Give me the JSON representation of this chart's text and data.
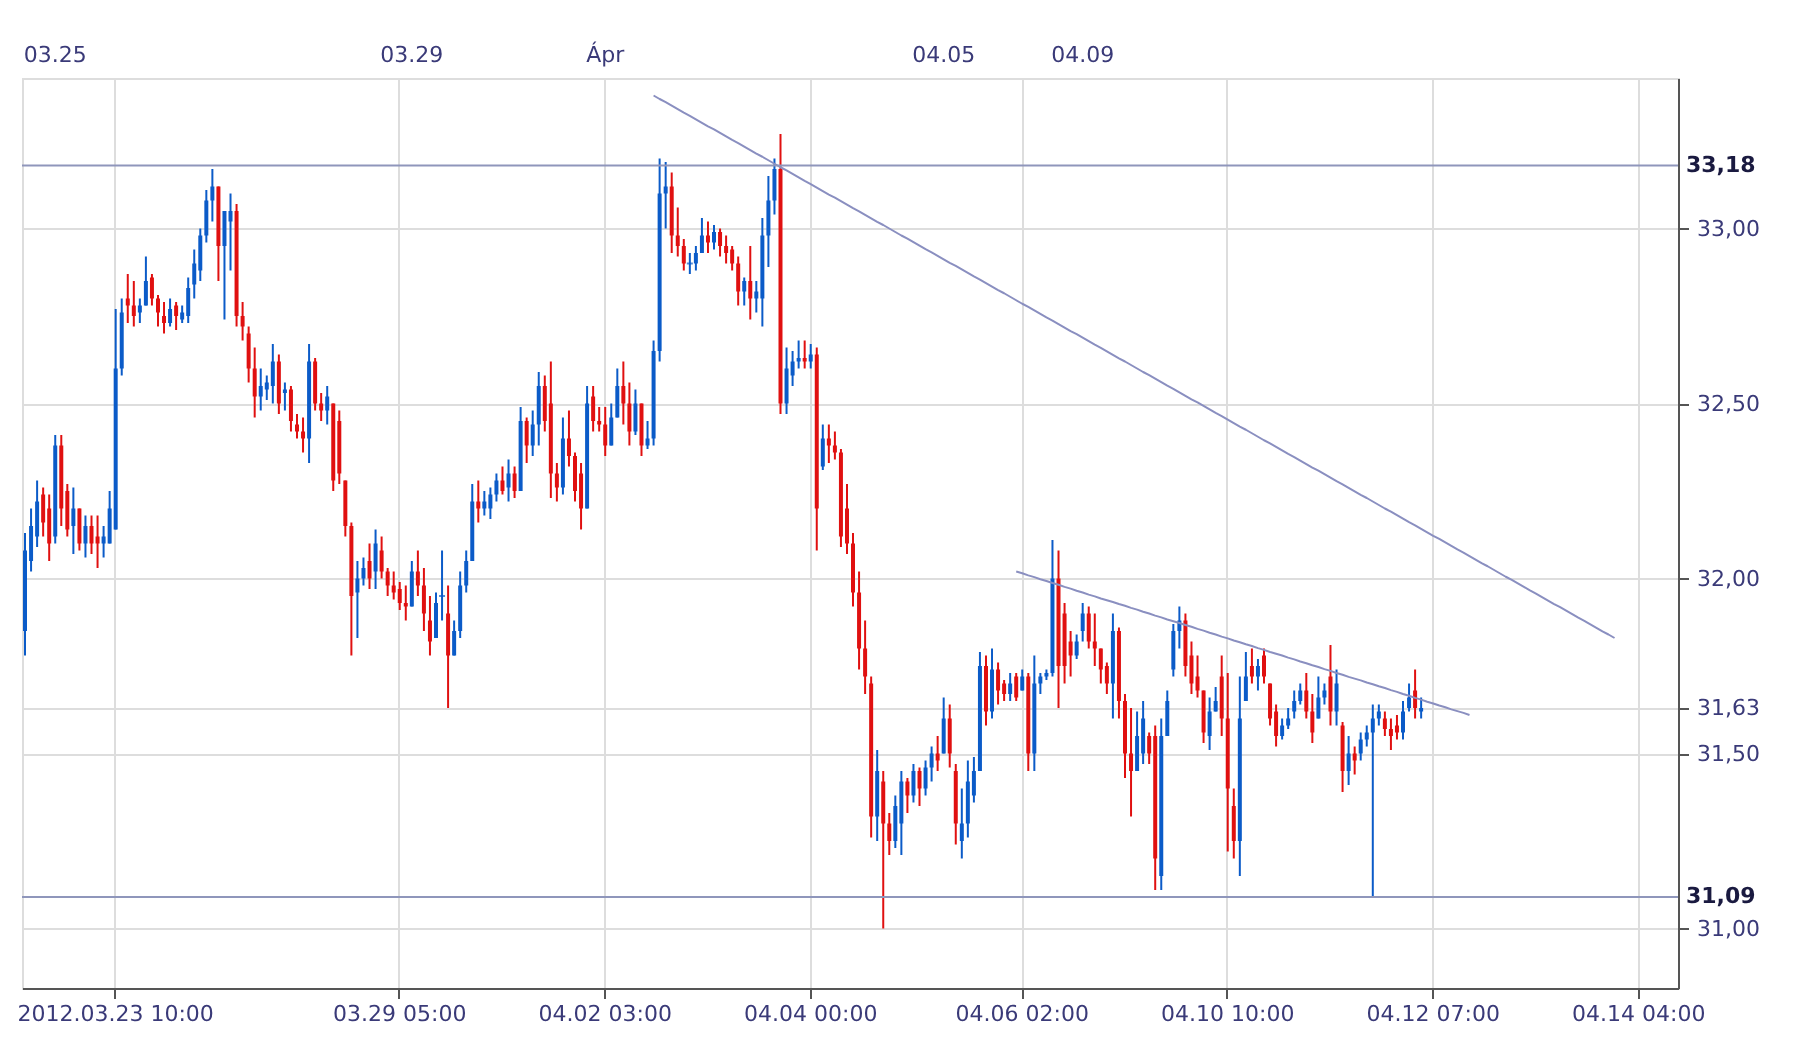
{
  "chart_data": {
    "type": "candlestick",
    "categories": [
      null,
      null,
      null,
      null,
      null,
      null,
      null,
      null,
      null,
      null,
      null,
      null,
      null,
      null,
      null,
      "2012.03.23 10:00",
      null,
      null,
      null,
      null,
      null,
      null,
      null,
      null,
      null,
      null,
      null,
      null,
      null,
      null,
      null,
      null,
      null,
      null,
      null,
      null,
      null,
      null,
      null,
      null,
      null,
      null,
      null,
      null,
      null,
      null,
      null,
      null,
      null,
      null,
      null,
      null,
      null,
      null,
      null,
      null,
      null,
      null,
      null,
      null,
      null,
      null,
      "03.29 05:00",
      null,
      null,
      null,
      null,
      null,
      null,
      null,
      null,
      null,
      null,
      null,
      null,
      null,
      null,
      null,
      null,
      null,
      null,
      null,
      null,
      null,
      null,
      null,
      null,
      null,
      null,
      null,
      null,
      null,
      null,
      null,
      null,
      null,
      "04.02 03:00",
      null,
      null,
      null,
      null,
      null,
      null,
      null,
      null,
      null,
      null,
      null,
      null,
      null,
      null,
      null,
      null,
      null,
      null,
      null,
      null,
      null,
      null,
      null,
      null,
      null,
      null,
      null,
      null,
      null,
      null,
      null,
      null,
      null,
      "04.04 00:00",
      null,
      null,
      null,
      null,
      null,
      null,
      null,
      null,
      null,
      null,
      null,
      null,
      null,
      null,
      null,
      null,
      null,
      null,
      null,
      null,
      null,
      null,
      null,
      null,
      null,
      null,
      null,
      null,
      null,
      null,
      null,
      null,
      null,
      null,
      "04.06 02:00",
      null,
      null,
      null,
      null,
      null,
      null,
      null,
      null,
      null,
      null,
      null,
      null,
      null,
      null,
      null,
      null,
      null,
      null,
      null,
      null,
      null,
      null,
      null,
      null,
      null,
      null,
      null,
      null,
      null,
      null,
      null,
      null,
      null,
      "04.10 10:00",
      null,
      null,
      null,
      null,
      null,
      null,
      null,
      null,
      null,
      null,
      null,
      null,
      null,
      null,
      null,
      null,
      null,
      null,
      null,
      null,
      null,
      null,
      null,
      null,
      null,
      null,
      null,
      null,
      null,
      null,
      null,
      null,
      null,
      "04.12 07:00",
      null,
      null,
      null,
      null,
      null,
      null,
      null,
      null,
      null,
      null,
      null,
      null,
      null,
      null,
      null,
      null,
      null,
      null,
      null,
      null,
      null,
      null,
      null,
      null,
      null,
      null,
      null,
      null,
      null,
      null,
      null,
      null,
      null,
      "04.14 04:00",
      null,
      null,
      null,
      null,
      null,
      null
    ],
    "ohlc": [
      [
        31.85,
        32.13,
        31.78,
        32.08
      ],
      [
        32.05,
        32.2,
        32.02,
        32.15
      ],
      [
        32.12,
        32.28,
        32.09,
        32.22
      ],
      [
        32.24,
        32.26,
        32.12,
        32.16
      ],
      [
        32.2,
        32.24,
        32.05,
        32.1
      ],
      [
        32.12,
        32.41,
        32.1,
        32.38
      ],
      [
        32.38,
        32.41,
        32.15,
        32.2
      ],
      [
        32.25,
        32.27,
        32.12,
        32.14
      ],
      [
        32.15,
        32.26,
        32.07,
        32.2
      ],
      [
        32.2,
        32.2,
        32.08,
        32.1
      ],
      [
        32.1,
        32.18,
        32.06,
        32.15
      ],
      [
        32.15,
        32.18,
        32.07,
        32.1
      ],
      [
        32.12,
        32.18,
        32.03,
        32.1
      ],
      [
        32.1,
        32.15,
        32.06,
        32.12
      ],
      [
        32.1,
        32.25,
        32.1,
        32.2
      ],
      [
        32.14,
        32.77,
        32.14,
        32.6
      ],
      [
        32.6,
        32.8,
        32.58,
        32.76
      ],
      [
        32.8,
        32.87,
        32.73,
        32.78
      ],
      [
        32.78,
        32.85,
        32.72,
        32.75
      ],
      [
        32.76,
        32.8,
        32.73,
        32.78
      ],
      [
        32.78,
        32.92,
        32.78,
        32.85
      ],
      [
        32.86,
        32.87,
        32.78,
        32.8
      ],
      [
        32.8,
        32.81,
        32.72,
        32.76
      ],
      [
        32.75,
        32.79,
        32.7,
        32.73
      ],
      [
        32.73,
        32.8,
        32.72,
        32.77
      ],
      [
        32.78,
        32.79,
        32.71,
        32.75
      ],
      [
        32.74,
        32.78,
        32.73,
        32.76
      ],
      [
        32.75,
        32.86,
        32.73,
        32.83
      ],
      [
        32.84,
        32.94,
        32.8,
        32.9
      ],
      [
        32.88,
        33.0,
        32.85,
        32.98
      ],
      [
        32.98,
        33.11,
        32.96,
        33.08
      ],
      [
        33.08,
        33.17,
        33.02,
        33.12
      ],
      [
        33.12,
        33.12,
        32.85,
        32.95
      ],
      [
        32.95,
        33.05,
        32.74,
        33.05
      ],
      [
        33.02,
        33.1,
        32.88,
        33.05
      ],
      [
        33.05,
        33.07,
        32.72,
        32.75
      ],
      [
        32.75,
        32.79,
        32.68,
        32.72
      ],
      [
        32.7,
        32.72,
        32.56,
        32.6
      ],
      [
        32.6,
        32.66,
        32.46,
        32.52
      ],
      [
        32.52,
        32.6,
        32.48,
        32.55
      ],
      [
        32.54,
        32.58,
        32.51,
        32.56
      ],
      [
        32.55,
        32.67,
        32.5,
        32.62
      ],
      [
        32.62,
        32.64,
        32.47,
        32.5
      ],
      [
        32.53,
        32.56,
        32.48,
        32.54
      ],
      [
        32.54,
        32.55,
        32.42,
        32.45
      ],
      [
        32.44,
        32.47,
        32.4,
        32.42
      ],
      [
        32.42,
        32.46,
        32.36,
        32.4
      ],
      [
        32.4,
        32.67,
        32.33,
        32.62
      ],
      [
        32.62,
        32.63,
        32.48,
        32.5
      ],
      [
        32.5,
        32.53,
        32.45,
        32.48
      ],
      [
        32.48,
        32.55,
        32.44,
        32.52
      ],
      [
        32.5,
        32.5,
        32.25,
        32.28
      ],
      [
        32.45,
        32.48,
        32.27,
        32.3
      ],
      [
        32.28,
        32.28,
        32.12,
        32.15
      ],
      [
        32.15,
        32.16,
        31.78,
        31.95
      ],
      [
        31.96,
        32.05,
        31.83,
        32.0
      ],
      [
        32.0,
        32.06,
        31.98,
        32.03
      ],
      [
        32.05,
        32.1,
        31.97,
        32.0
      ],
      [
        32.02,
        32.14,
        31.97,
        32.1
      ],
      [
        32.08,
        32.12,
        32.0,
        32.02
      ],
      [
        32.02,
        32.03,
        31.95,
        31.98
      ],
      [
        31.98,
        32.02,
        31.94,
        31.96
      ],
      [
        31.97,
        31.99,
        31.91,
        31.93
      ],
      [
        31.93,
        31.98,
        31.88,
        31.92
      ],
      [
        31.92,
        32.05,
        31.92,
        32.02
      ],
      [
        32.02,
        32.08,
        31.95,
        31.98
      ],
      [
        31.98,
        32.03,
        31.85,
        31.9
      ],
      [
        31.88,
        31.95,
        31.78,
        31.82
      ],
      [
        31.83,
        31.96,
        31.83,
        31.93
      ],
      [
        31.95,
        32.08,
        31.88,
        31.95
      ],
      [
        31.9,
        31.98,
        31.63,
        31.78
      ],
      [
        31.78,
        31.88,
        31.78,
        31.85
      ],
      [
        31.85,
        32.02,
        31.83,
        31.98
      ],
      [
        31.98,
        32.08,
        31.96,
        32.05
      ],
      [
        32.05,
        32.27,
        32.05,
        32.22
      ],
      [
        32.22,
        32.28,
        32.16,
        32.2
      ],
      [
        32.2,
        32.25,
        32.18,
        32.22
      ],
      [
        32.2,
        32.26,
        32.17,
        32.24
      ],
      [
        32.24,
        32.3,
        32.22,
        32.28
      ],
      [
        32.28,
        32.32,
        32.24,
        32.25
      ],
      [
        32.26,
        32.34,
        32.22,
        32.3
      ],
      [
        32.3,
        32.32,
        32.23,
        32.25
      ],
      [
        32.25,
        32.49,
        32.25,
        32.45
      ],
      [
        32.45,
        32.46,
        32.33,
        32.38
      ],
      [
        32.38,
        32.48,
        32.35,
        32.44
      ],
      [
        32.44,
        32.59,
        32.38,
        32.55
      ],
      [
        32.55,
        32.58,
        32.42,
        32.45
      ],
      [
        32.5,
        32.62,
        32.23,
        32.3
      ],
      [
        32.3,
        32.33,
        32.22,
        32.26
      ],
      [
        32.26,
        32.46,
        32.24,
        32.4
      ],
      [
        32.4,
        32.48,
        32.32,
        32.35
      ],
      [
        32.35,
        32.36,
        32.22,
        32.25
      ],
      [
        32.3,
        32.33,
        32.14,
        32.2
      ],
      [
        32.2,
        32.55,
        32.2,
        32.5
      ],
      [
        32.52,
        32.55,
        32.42,
        32.45
      ],
      [
        32.45,
        32.49,
        32.42,
        32.44
      ],
      [
        32.44,
        32.49,
        32.35,
        32.38
      ],
      [
        32.38,
        32.5,
        32.38,
        32.46
      ],
      [
        32.46,
        32.6,
        32.46,
        32.55
      ],
      [
        32.55,
        32.62,
        32.44,
        32.5
      ],
      [
        32.5,
        32.56,
        32.38,
        32.42
      ],
      [
        32.42,
        32.54,
        32.41,
        32.5
      ],
      [
        32.5,
        32.5,
        32.35,
        32.38
      ],
      [
        32.38,
        32.45,
        32.37,
        32.4
      ],
      [
        32.4,
        32.68,
        32.38,
        32.65
      ],
      [
        32.65,
        33.2,
        32.62,
        33.1
      ],
      [
        33.1,
        33.19,
        33.0,
        33.12
      ],
      [
        33.12,
        33.16,
        32.93,
        32.98
      ],
      [
        32.98,
        33.06,
        32.92,
        32.95
      ],
      [
        32.95,
        32.97,
        32.88,
        32.9
      ],
      [
        32.9,
        32.93,
        32.87,
        32.9
      ],
      [
        32.9,
        32.95,
        32.88,
        32.93
      ],
      [
        32.93,
        33.03,
        32.93,
        32.98
      ],
      [
        32.98,
        33.02,
        32.93,
        32.96
      ],
      [
        32.96,
        33.01,
        32.94,
        32.99
      ],
      [
        32.99,
        33.0,
        32.92,
        32.95
      ],
      [
        32.95,
        32.98,
        32.9,
        32.93
      ],
      [
        32.94,
        32.95,
        32.88,
        32.9
      ],
      [
        32.9,
        32.92,
        32.78,
        32.82
      ],
      [
        32.82,
        32.86,
        32.78,
        32.85
      ],
      [
        32.85,
        32.95,
        32.74,
        32.8
      ],
      [
        32.8,
        32.85,
        32.76,
        32.82
      ],
      [
        32.8,
        33.03,
        32.72,
        32.98
      ],
      [
        32.98,
        33.15,
        32.89,
        33.08
      ],
      [
        33.08,
        33.2,
        33.04,
        33.17
      ],
      [
        33.17,
        33.27,
        32.47,
        32.5
      ],
      [
        32.5,
        32.66,
        32.47,
        32.6
      ],
      [
        32.58,
        32.65,
        32.55,
        32.62
      ],
      [
        32.62,
        32.68,
        32.6,
        32.63
      ],
      [
        32.63,
        32.68,
        32.6,
        32.62
      ],
      [
        32.62,
        32.67,
        32.6,
        32.64
      ],
      [
        32.64,
        32.66,
        32.08,
        32.2
      ],
      [
        32.32,
        32.44,
        32.31,
        32.4
      ],
      [
        32.4,
        32.44,
        32.33,
        32.38
      ],
      [
        32.38,
        32.42,
        32.34,
        32.36
      ],
      [
        32.36,
        32.37,
        32.09,
        32.12
      ],
      [
        32.2,
        32.27,
        32.07,
        32.1
      ],
      [
        32.1,
        32.13,
        31.92,
        31.96
      ],
      [
        31.96,
        32.02,
        31.74,
        31.8
      ],
      [
        31.8,
        31.88,
        31.67,
        31.72
      ],
      [
        31.7,
        31.72,
        31.26,
        31.32
      ],
      [
        31.32,
        31.51,
        31.25,
        31.45
      ],
      [
        31.42,
        31.45,
        31.0,
        31.3
      ],
      [
        31.3,
        31.33,
        31.21,
        31.25
      ],
      [
        31.25,
        31.38,
        31.23,
        31.35
      ],
      [
        31.3,
        31.45,
        31.21,
        31.42
      ],
      [
        31.42,
        31.43,
        31.33,
        31.38
      ],
      [
        31.38,
        31.47,
        31.36,
        31.45
      ],
      [
        31.45,
        31.46,
        31.35,
        31.4
      ],
      [
        31.4,
        31.48,
        31.38,
        31.46
      ],
      [
        31.46,
        31.52,
        31.42,
        31.5
      ],
      [
        31.5,
        31.55,
        31.45,
        31.48
      ],
      [
        31.5,
        31.66,
        31.5,
        31.6
      ],
      [
        31.6,
        31.64,
        31.46,
        31.5
      ],
      [
        31.45,
        31.47,
        31.24,
        31.3
      ],
      [
        31.25,
        31.4,
        31.2,
        31.3
      ],
      [
        31.3,
        31.48,
        31.26,
        31.42
      ],
      [
        31.38,
        31.49,
        31.36,
        31.45
      ],
      [
        31.45,
        31.79,
        31.45,
        31.75
      ],
      [
        31.75,
        31.78,
        31.58,
        31.62
      ],
      [
        31.62,
        31.8,
        31.6,
        31.74
      ],
      [
        31.74,
        31.76,
        31.64,
        31.68
      ],
      [
        31.7,
        31.71,
        31.65,
        31.67
      ],
      [
        31.67,
        31.73,
        31.65,
        31.7
      ],
      [
        31.72,
        31.73,
        31.65,
        31.66
      ],
      [
        31.68,
        31.74,
        31.68,
        31.72
      ],
      [
        31.72,
        31.73,
        31.45,
        31.5
      ],
      [
        31.5,
        31.78,
        31.45,
        31.7
      ],
      [
        31.7,
        31.73,
        31.67,
        31.72
      ],
      [
        31.72,
        31.74,
        31.71,
        31.73
      ],
      [
        31.73,
        32.11,
        31.72,
        32.0
      ],
      [
        32.0,
        32.08,
        31.63,
        31.75
      ],
      [
        31.9,
        31.93,
        31.7,
        31.75
      ],
      [
        31.82,
        31.85,
        31.72,
        31.78
      ],
      [
        31.78,
        31.84,
        31.77,
        31.82
      ],
      [
        31.85,
        31.93,
        31.82,
        31.9
      ],
      [
        31.9,
        31.92,
        31.8,
        31.82
      ],
      [
        31.82,
        31.9,
        31.75,
        31.8
      ],
      [
        31.8,
        31.8,
        31.7,
        31.74
      ],
      [
        31.75,
        31.76,
        31.67,
        31.7
      ],
      [
        31.7,
        31.9,
        31.6,
        31.85
      ],
      [
        31.85,
        31.86,
        31.6,
        31.65
      ],
      [
        31.65,
        31.67,
        31.43,
        31.5
      ],
      [
        31.5,
        31.63,
        31.32,
        31.45
      ],
      [
        31.45,
        31.62,
        31.45,
        31.55
      ],
      [
        31.5,
        31.65,
        31.47,
        31.6
      ],
      [
        31.55,
        31.56,
        31.47,
        31.5
      ],
      [
        31.55,
        31.58,
        31.11,
        31.2
      ],
      [
        31.15,
        31.6,
        31.11,
        31.55
      ],
      [
        31.55,
        31.68,
        31.55,
        31.65
      ],
      [
        31.74,
        31.87,
        31.72,
        31.85
      ],
      [
        31.85,
        31.92,
        31.8,
        31.88
      ],
      [
        31.88,
        31.9,
        31.72,
        31.75
      ],
      [
        31.78,
        31.82,
        31.67,
        31.7
      ],
      [
        31.72,
        31.78,
        31.66,
        31.68
      ],
      [
        31.68,
        31.68,
        31.53,
        31.56
      ],
      [
        31.55,
        31.66,
        31.51,
        31.62
      ],
      [
        31.62,
        31.69,
        31.62,
        31.65
      ],
      [
        31.72,
        31.78,
        31.55,
        31.6
      ],
      [
        31.6,
        31.73,
        31.22,
        31.4
      ],
      [
        31.35,
        31.4,
        31.2,
        31.25
      ],
      [
        31.25,
        31.72,
        31.15,
        31.6
      ],
      [
        31.65,
        31.79,
        31.65,
        31.72
      ],
      [
        31.75,
        31.8,
        31.7,
        31.72
      ],
      [
        31.72,
        31.77,
        31.68,
        31.75
      ],
      [
        31.78,
        31.8,
        31.7,
        31.72
      ],
      [
        31.7,
        31.7,
        31.58,
        31.6
      ],
      [
        31.62,
        31.64,
        31.52,
        31.55
      ],
      [
        31.55,
        31.6,
        31.54,
        31.58
      ],
      [
        31.58,
        31.63,
        31.57,
        31.6
      ],
      [
        31.62,
        31.68,
        31.6,
        31.65
      ],
      [
        31.65,
        31.7,
        31.64,
        31.68
      ],
      [
        31.68,
        31.73,
        31.6,
        31.62
      ],
      [
        31.62,
        31.67,
        31.53,
        31.56
      ],
      [
        31.6,
        31.72,
        31.6,
        31.66
      ],
      [
        31.66,
        31.7,
        31.64,
        31.68
      ],
      [
        31.72,
        31.81,
        31.58,
        31.62
      ],
      [
        31.62,
        31.74,
        31.58,
        31.7
      ],
      [
        31.58,
        31.59,
        31.39,
        31.45
      ],
      [
        31.45,
        31.55,
        31.41,
        31.5
      ],
      [
        31.5,
        31.52,
        31.44,
        31.48
      ],
      [
        31.5,
        31.56,
        31.48,
        31.54
      ],
      [
        31.54,
        31.58,
        31.52,
        31.56
      ],
      [
        31.56,
        31.64,
        31.09,
        31.6
      ],
      [
        31.6,
        31.64,
        31.58,
        31.62
      ],
      [
        31.6,
        31.62,
        31.55,
        31.57
      ],
      [
        31.57,
        31.6,
        31.51,
        31.55
      ],
      [
        31.58,
        31.61,
        31.54,
        31.56
      ],
      [
        31.56,
        31.65,
        31.54,
        31.62
      ],
      [
        31.63,
        31.7,
        31.62,
        31.66
      ],
      [
        31.68,
        31.74,
        31.6,
        31.63
      ],
      [
        31.62,
        31.66,
        31.6,
        31.63
      ],
      null,
      null,
      null,
      null,
      null,
      null,
      null,
      null,
      null,
      null,
      null,
      null,
      null,
      null,
      null,
      null,
      null,
      null,
      null,
      null,
      null,
      null,
      null,
      null,
      null,
      null,
      null,
      null,
      null,
      null,
      null,
      null,
      null,
      null,
      null,
      null,
      null,
      null,
      null,
      null,
      null,
      null
    ],
    "series": [
      {
        "type": "line",
        "color": "#8a8fc0",
        "values": [
          null,
          null,
          null,
          null,
          null,
          null,
          null,
          null,
          null,
          null,
          null,
          null,
          null,
          null,
          null,
          null,
          null,
          null,
          null,
          null,
          null,
          null,
          null,
          null,
          null,
          null,
          null,
          null,
          null,
          null,
          null,
          null,
          null,
          null,
          null,
          null,
          null,
          null,
          null,
          null,
          null,
          null,
          null,
          null,
          null,
          null,
          null,
          null,
          null,
          null,
          null,
          null,
          null,
          null,
          null,
          null,
          null,
          null,
          null,
          null,
          null,
          null,
          null,
          null,
          null,
          null,
          null,
          null,
          null,
          null,
          null,
          null,
          null,
          null,
          null,
          null,
          null,
          null,
          null,
          null,
          null,
          null,
          null,
          null,
          null,
          null,
          null,
          null,
          null,
          null,
          null,
          null,
          null,
          null,
          null,
          null,
          null,
          null,
          null,
          null,
          null,
          null,
          null,
          null,
          33.38,
          33.37,
          33.361,
          33.351,
          33.341,
          33.331,
          33.322,
          33.312,
          33.302,
          33.292,
          33.283,
          33.273,
          33.263,
          33.253,
          33.244,
          33.234,
          33.224,
          33.214,
          33.205,
          33.195,
          33.185,
          33.175,
          33.166,
          33.156,
          33.146,
          33.136,
          33.127,
          33.117,
          33.107,
          33.097,
          33.088,
          33.078,
          33.068,
          33.058,
          33.049,
          33.039,
          33.029,
          33.019,
          33.01,
          33.0,
          32.99,
          32.98,
          32.971,
          32.961,
          32.951,
          32.941,
          32.932,
          32.922,
          32.912,
          32.902,
          32.893,
          32.883,
          32.873,
          32.863,
          32.854,
          32.844,
          32.834,
          32.824,
          32.815,
          32.805,
          32.795,
          32.785,
          32.776,
          32.766,
          32.756,
          32.746,
          32.737,
          32.727,
          32.717,
          32.707,
          32.698,
          32.688,
          32.678,
          32.668,
          32.659,
          32.649,
          32.639,
          32.629,
          32.62,
          32.61,
          32.6,
          32.59,
          32.581,
          32.571,
          32.561,
          32.551,
          32.542,
          32.532,
          32.522,
          32.512,
          32.503,
          32.493,
          32.483,
          32.473,
          32.464,
          32.454,
          32.444,
          32.434,
          32.425,
          32.415,
          32.405,
          32.395,
          32.386,
          32.376,
          32.366,
          32.356,
          32.347,
          32.337,
          32.327,
          32.317,
          32.308,
          32.298,
          32.288,
          32.278,
          32.269,
          32.259,
          32.249,
          32.239,
          32.23,
          32.22,
          32.21,
          32.2,
          32.191,
          32.181,
          32.171,
          32.161,
          32.152,
          32.142,
          32.132,
          32.122,
          32.113,
          32.103,
          32.093,
          32.083,
          32.074,
          32.064,
          32.054,
          32.044,
          32.035,
          32.025,
          32.015,
          32.005,
          31.996,
          31.986,
          31.976,
          31.966,
          31.957,
          31.947,
          31.937,
          31.927,
          31.918,
          31.908,
          31.898,
          31.888,
          31.879,
          31.869,
          31.859,
          31.849,
          31.84,
          31.83,
          null,
          null,
          null,
          null,
          null,
          null,
          null,
          null,
          null,
          null
        ]
      },
      {
        "type": "line",
        "color": "#8a8fc0",
        "values": [
          null,
          null,
          null,
          null,
          null,
          null,
          null,
          null,
          null,
          null,
          null,
          null,
          null,
          null,
          null,
          null,
          null,
          null,
          null,
          null,
          null,
          null,
          null,
          null,
          null,
          null,
          null,
          null,
          null,
          null,
          null,
          null,
          null,
          null,
          null,
          null,
          null,
          null,
          null,
          null,
          null,
          null,
          null,
          null,
          null,
          null,
          null,
          null,
          null,
          null,
          null,
          null,
          null,
          null,
          null,
          null,
          null,
          null,
          null,
          null,
          null,
          null,
          null,
          null,
          null,
          null,
          null,
          null,
          null,
          null,
          null,
          null,
          null,
          null,
          null,
          null,
          null,
          null,
          null,
          null,
          null,
          null,
          null,
          null,
          null,
          null,
          null,
          null,
          null,
          null,
          null,
          null,
          null,
          null,
          null,
          null,
          null,
          null,
          null,
          null,
          null,
          null,
          null,
          null,
          null,
          null,
          null,
          null,
          null,
          null,
          null,
          null,
          null,
          null,
          null,
          null,
          null,
          null,
          null,
          null,
          null,
          null,
          null,
          null,
          null,
          null,
          null,
          null,
          null,
          null,
          null,
          null,
          null,
          null,
          null,
          null,
          null,
          null,
          null,
          null,
          null,
          null,
          null,
          null,
          null,
          null,
          null,
          null,
          null,
          null,
          null,
          null,
          null,
          null,
          null,
          null,
          null,
          null,
          null,
          null,
          null,
          null,
          null,
          null,
          32.02,
          32.015,
          32.009,
          32.004,
          31.998,
          31.993,
          31.987,
          31.982,
          31.976,
          31.971,
          31.965,
          31.96,
          31.954,
          31.949,
          31.943,
          31.938,
          31.933,
          31.927,
          31.922,
          31.916,
          31.911,
          31.905,
          31.9,
          31.894,
          31.889,
          31.883,
          31.878,
          31.873,
          31.867,
          31.862,
          31.856,
          31.851,
          31.845,
          31.84,
          31.834,
          31.829,
          31.823,
          31.818,
          31.812,
          31.807,
          31.801,
          31.796,
          31.79,
          31.785,
          31.78,
          31.774,
          31.769,
          31.763,
          31.758,
          31.752,
          31.747,
          31.741,
          31.736,
          31.73,
          31.725,
          31.719,
          31.714,
          31.709,
          31.703,
          31.698,
          31.692,
          31.687,
          31.681,
          31.676,
          31.67,
          31.665,
          31.659,
          31.654,
          31.648,
          31.643,
          31.637,
          31.632,
          31.626,
          31.621,
          31.616,
          31.61,
          null,
          null,
          null,
          null,
          null,
          null,
          null,
          null,
          null,
          null,
          null,
          null,
          null,
          null,
          null,
          null,
          null,
          null,
          null,
          null,
          null,
          null,
          null,
          null,
          null,
          null,
          null,
          null,
          null,
          null,
          null,
          null,
          null,
          null
        ]
      }
    ],
    "ylim": [
      30.83,
      33.43
    ],
    "yticks": [
      {
        "value": 31.0,
        "label": "31,00"
      },
      {
        "value": 31.5,
        "label": "31,50"
      },
      {
        "value": 31.63,
        "label": "31,63"
      },
      {
        "value": 32.0,
        "label": "32,00"
      },
      {
        "value": 32.5,
        "label": "32,50"
      },
      {
        "value": 33.0,
        "label": "33,00"
      }
    ],
    "ref_lines": [
      {
        "axis": "y",
        "value": 33.18,
        "label": "33,18",
        "color": "#8f96bb"
      },
      {
        "axis": "y",
        "value": 31.09,
        "label": "31,09",
        "color": "#8f96bb"
      }
    ],
    "annotations": [
      "03.25",
      "03.29",
      "Ápr",
      "04.05",
      "04.09"
    ],
    "grid": true
  }
}
